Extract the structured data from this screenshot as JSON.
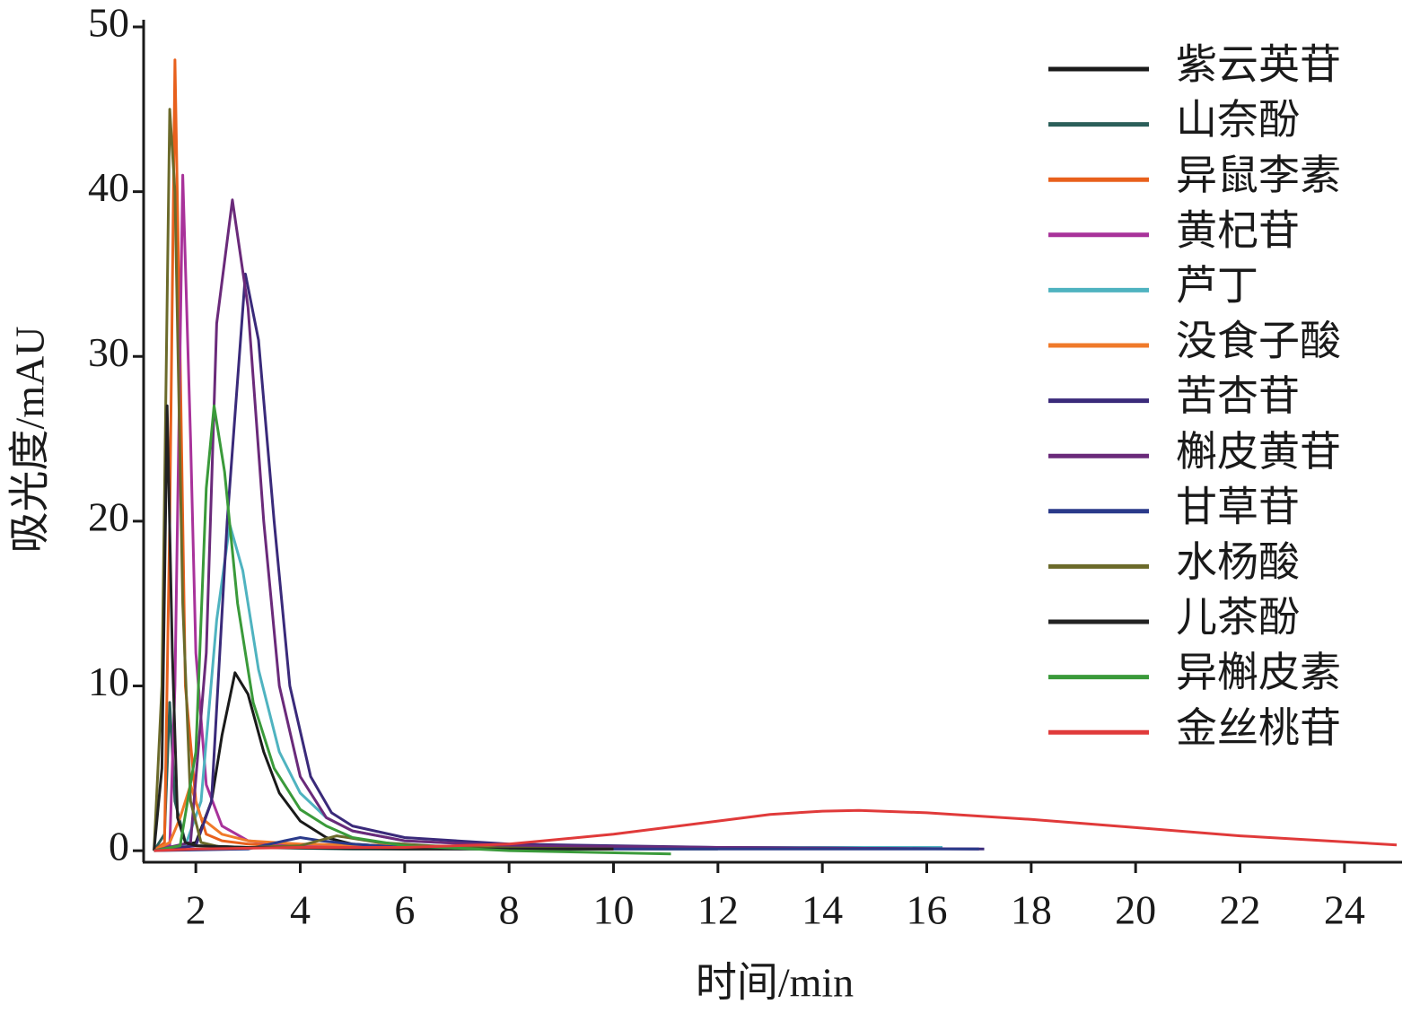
{
  "chart_data": {
    "type": "line",
    "xlabel": "时间/min",
    "ylabel": "吸光度/mAU",
    "xlim": [
      1,
      25
    ],
    "ylim": [
      -0.7,
      50
    ],
    "xticks": [
      2,
      4,
      6,
      8,
      10,
      12,
      14,
      16,
      18,
      20,
      22,
      24
    ],
    "yticks": [
      0,
      10,
      20,
      30,
      40,
      50
    ],
    "legend": "upper right",
    "series": [
      {
        "name": "紫云英苷",
        "color": "#1a1a1a",
        "x": [
          1.2,
          1.5,
          2.0,
          2.3,
          2.5,
          2.75,
          3.0,
          3.3,
          3.6,
          4,
          4.5,
          5,
          6,
          8,
          10
        ],
        "values": [
          0,
          0.2,
          0.5,
          3,
          7,
          10.8,
          9.5,
          6,
          3.5,
          1.8,
          0.8,
          0.4,
          0.2,
          0.1,
          0.1
        ]
      },
      {
        "name": "山奈酚",
        "color": "#2b5f5a",
        "x": [
          1.2,
          1.4,
          1.5,
          1.6,
          1.8,
          2,
          3,
          5,
          8,
          12
        ],
        "values": [
          0,
          1,
          9,
          3,
          0.5,
          0.3,
          0.2,
          0.1,
          0.1,
          0.1
        ]
      },
      {
        "name": "异鼠李素",
        "color": "#e8601c",
        "x": [
          1.2,
          1.4,
          1.5,
          1.6,
          1.7,
          1.8,
          2,
          2.2,
          2.5,
          3,
          4,
          6,
          10
        ],
        "values": [
          0,
          0.5,
          20,
          48,
          30,
          10,
          3,
          1,
          0.6,
          0.4,
          0.3,
          0.2,
          0.1
        ]
      },
      {
        "name": "黄杞苷",
        "color": "#a8329a",
        "x": [
          1.2,
          1.5,
          1.6,
          1.75,
          1.9,
          2.0,
          2.2,
          2.5,
          3,
          4,
          6,
          10
        ],
        "values": [
          0,
          0.3,
          10,
          41,
          25,
          12,
          4,
          1.5,
          0.6,
          0.3,
          0.2,
          0.1
        ]
      },
      {
        "name": "芦丁",
        "color": "#4fb3c0",
        "x": [
          1.2,
          1.8,
          2.1,
          2.4,
          2.65,
          2.9,
          3.2,
          3.6,
          4,
          4.5,
          5,
          6,
          8,
          12,
          16.3
        ],
        "values": [
          0,
          0.3,
          3,
          14,
          19.8,
          17,
          11,
          6,
          3.5,
          2,
          1.2,
          0.6,
          0.3,
          0.2,
          0.2
        ]
      },
      {
        "name": "没食子酸",
        "color": "#f07a2a",
        "x": [
          1.2,
          1.5,
          1.7,
          1.9,
          2.1,
          2.5,
          3,
          4,
          6,
          10
        ],
        "values": [
          0,
          0.5,
          2,
          4,
          2,
          1,
          0.6,
          0.4,
          0.3,
          0.2
        ]
      },
      {
        "name": "苦杏苷",
        "color": "#3a2a7a",
        "x": [
          1.2,
          2,
          2.3,
          2.6,
          2.95,
          3.2,
          3.5,
          3.8,
          4.2,
          4.6,
          5,
          6,
          8,
          12,
          17.1
        ],
        "values": [
          0,
          0.3,
          3,
          20,
          35,
          31,
          20,
          10,
          4.5,
          2.3,
          1.5,
          0.8,
          0.4,
          0.2,
          0.1
        ]
      },
      {
        "name": "槲皮黄苷",
        "color": "#6a2a7a",
        "x": [
          1.2,
          1.9,
          2.2,
          2.4,
          2.7,
          3,
          3.3,
          3.6,
          4,
          4.5,
          5,
          6,
          8,
          12,
          17
        ],
        "values": [
          0,
          0.5,
          12,
          32,
          39.5,
          33,
          20,
          10,
          4.5,
          2,
          1.2,
          0.6,
          0.3,
          0.2,
          0.1
        ]
      },
      {
        "name": "甘草苷",
        "color": "#2a3a8a",
        "x": [
          1.2,
          3,
          3.7,
          4,
          4.4,
          5,
          6,
          10,
          17
        ],
        "values": [
          0,
          0.1,
          0.6,
          0.8,
          0.6,
          0.4,
          0.2,
          0.1,
          0.1
        ]
      },
      {
        "name": "水杨酸",
        "color": "#6b6a2a",
        "x": [
          1.2,
          1.35,
          1.5,
          1.6,
          1.75,
          1.9,
          2.1,
          2.5,
          3,
          4,
          4.7,
          5.5,
          7,
          10
        ],
        "values": [
          0,
          10,
          45,
          40,
          15,
          3,
          0.5,
          0.2,
          0.2,
          0.3,
          0.9,
          0.5,
          0.2,
          0.1
        ]
      },
      {
        "name": "儿茶酚",
        "color": "#222222",
        "x": [
          1.2,
          1.35,
          1.45,
          1.55,
          1.65,
          1.8,
          2.0,
          3,
          6,
          10
        ],
        "values": [
          0,
          5,
          27,
          12,
          2,
          0.5,
          0.3,
          0.2,
          0.1,
          0.1
        ]
      },
      {
        "name": "异槲皮素",
        "color": "#3a9a3a",
        "x": [
          1.2,
          1.7,
          2.0,
          2.2,
          2.35,
          2.55,
          2.8,
          3.1,
          3.5,
          4,
          4.5,
          5,
          6,
          8,
          11.1
        ],
        "values": [
          0,
          0.3,
          6,
          22,
          27,
          23,
          15,
          9,
          5,
          2.5,
          1.5,
          0.8,
          0.3,
          0,
          -0.2
        ]
      },
      {
        "name": "金丝桃苷",
        "color": "#e03a3a",
        "x": [
          1.2,
          2,
          4,
          6,
          8,
          10,
          12,
          13,
          14,
          14.7,
          16,
          18,
          20,
          22,
          25
        ],
        "values": [
          0,
          0.1,
          0.2,
          0.2,
          0.4,
          1.0,
          1.8,
          2.2,
          2.4,
          2.45,
          2.3,
          1.9,
          1.4,
          0.9,
          0.35
        ]
      }
    ]
  }
}
